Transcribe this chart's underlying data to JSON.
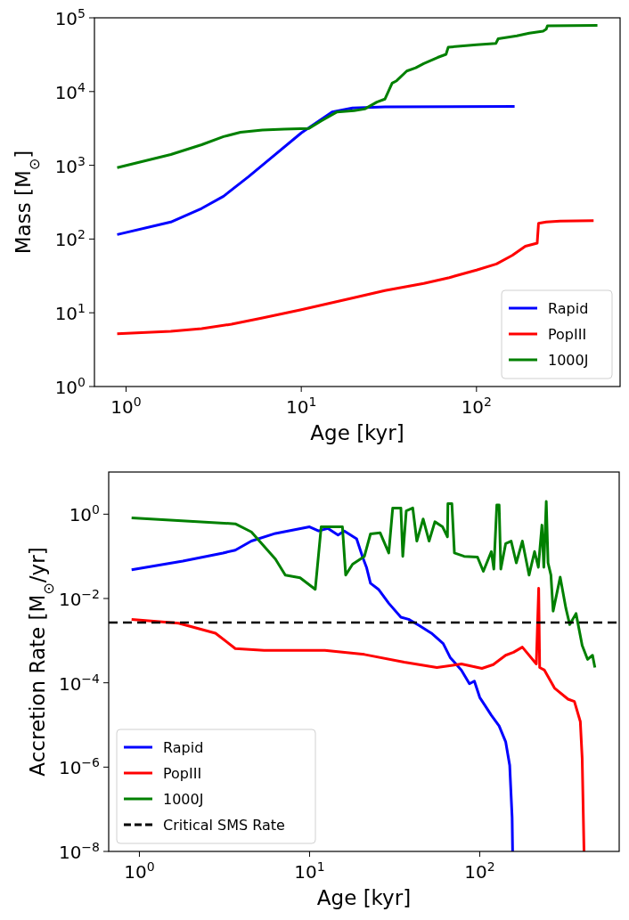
{
  "chart_data": [
    {
      "type": "line",
      "xlabel": "Age [kyr]",
      "ylabel": "Mass [M$_{⊙}$]",
      "log": "xy",
      "grid": false,
      "legend": "bottom right",
      "line_style": "solid",
      "marker": "none",
      "xlim": [
        0.66,
        660
      ],
      "ylim": [
        1,
        100000
      ],
      "xticks": [
        {
          "value": 1,
          "label": "10$^{0}$"
        },
        {
          "value": 10,
          "label": "10$^{1}$"
        },
        {
          "value": 100,
          "label": "10$^{2}$"
        }
      ],
      "yticks": [
        {
          "value": 1,
          "label": "10$^{0}$"
        },
        {
          "value": 10,
          "label": "10$^{1}$"
        },
        {
          "value": 100,
          "label": "10$^{2}$"
        },
        {
          "value": 1000,
          "label": "10$^{3}$"
        },
        {
          "value": 10000,
          "label": "10$^{4}$"
        },
        {
          "value": 100000,
          "label": "10$^{5}$"
        }
      ],
      "series": [
        {
          "name": "Rapid",
          "color": "#0000ff",
          "x": [
            0.89,
            1.8,
            2.7,
            3.6,
            5,
            6.4,
            10,
            15,
            19.6,
            30,
            165
          ],
          "values": [
            115,
            170,
            260,
            380,
            700,
            1140,
            2750,
            5300,
            6000,
            6200,
            6300
          ]
        },
        {
          "name": "PopIII",
          "color": "#ff0000",
          "x": [
            0.89,
            1.8,
            2.7,
            4,
            6,
            10,
            20,
            30,
            50,
            70,
            100,
            130,
            160,
            190,
            222,
            226,
            250,
            300,
            466
          ],
          "values": [
            5.2,
            5.6,
            6.1,
            7,
            8.5,
            11,
            16,
            20,
            25,
            30,
            38,
            46,
            60,
            80,
            88,
            163,
            170,
            175,
            178
          ]
        },
        {
          "name": "1000J",
          "color": "#008000",
          "x": [
            0.89,
            1.8,
            2.7,
            3.6,
            4.5,
            6,
            8,
            11,
            13,
            16,
            20,
            23,
            27,
            30,
            33,
            35,
            40,
            45,
            50,
            60,
            67,
            69,
            100,
            129,
            133,
            170,
            200,
            240,
            250,
            254,
            490
          ],
          "values": [
            930,
            1400,
            1900,
            2450,
            2800,
            3000,
            3100,
            3150,
            4000,
            5300,
            5500,
            5800,
            7200,
            7900,
            13000,
            14000,
            19000,
            21000,
            24000,
            29000,
            32000,
            40000,
            43000,
            45000,
            52000,
            57000,
            62000,
            66000,
            70000,
            78000,
            79000
          ]
        }
      ]
    },
    {
      "type": "line",
      "xlabel": "Age [kyr]",
      "ylabel": "Accretion Rate [M$_{⊙}$/yr]",
      "log": "xy",
      "grid": false,
      "legend": "bottom left",
      "line_style": "solid",
      "marker": "none",
      "xlim": [
        0.66,
        660
      ],
      "ylim": [
        1e-08,
        10
      ],
      "xticks": [
        {
          "value": 1,
          "label": "10$^{0}$"
        },
        {
          "value": 10,
          "label": "10$^{1}$"
        },
        {
          "value": 100,
          "label": "10$^{2}$"
        }
      ],
      "yticks": [
        {
          "value": 1e-08,
          "label": "10$^{−8}$"
        },
        {
          "value": 1e-06,
          "label": "10$^{−6}$"
        },
        {
          "value": 0.0001,
          "label": "10$^{−4}$"
        },
        {
          "value": 0.01,
          "label": "10$^{−2}$"
        },
        {
          "value": 1,
          "label": "10$^{0}$"
        }
      ],
      "ref_lines": [
        {
          "axis": "y",
          "value": 0.0027,
          "label": "Critical SMS Rate",
          "color": "#000000",
          "line_style": "dashed"
        }
      ],
      "series": [
        {
          "name": "Rapid",
          "color": "#0000ff",
          "x": [
            0.9,
            1.8,
            3.1,
            3.66,
            4.55,
            6.3,
            10,
            11.3,
            12.8,
            14.7,
            16,
            18.9,
            20.5,
            21.6,
            22.8,
            25.4,
            29.2,
            34.4,
            38.2,
            44,
            52,
            61,
            67,
            78,
            87,
            93,
            100,
            108,
            117,
            130,
            142,
            150,
            155,
            156
          ],
          "values": [
            0.048,
            0.077,
            0.12,
            0.14,
            0.23,
            0.35,
            0.5,
            0.4,
            0.46,
            0.32,
            0.4,
            0.26,
            0.096,
            0.055,
            0.023,
            0.0165,
            0.0077,
            0.0036,
            0.0032,
            0.0023,
            0.0015,
            0.00085,
            0.0004,
            0.0002,
            9.5e-05,
            0.00011,
            4.5e-05,
            2.8e-05,
            1.7e-05,
            9.5e-06,
            4e-06,
            1.1e-06,
            6.3e-08,
            1e-08
          ]
        },
        {
          "name": "PopIII",
          "color": "#ff0000",
          "x": [
            0.9,
            1.7,
            2.8,
            3.66,
            5.4,
            12.3,
            21,
            36,
            56,
            78,
            103,
            120,
            142,
            158,
            178,
            215,
            222,
            225,
            240,
            275,
            330,
            360,
            390,
            400,
            410
          ],
          "values": [
            0.0032,
            0.0026,
            0.0015,
            0.00065,
            0.00059,
            0.00059,
            0.00047,
            0.00031,
            0.00023,
            0.00028,
            0.00022,
            0.00027,
            0.00045,
            0.00053,
            0.0007,
            0.00028,
            0.0174,
            0.00023,
            0.0002,
            7.5e-05,
            4.1e-05,
            3.6e-05,
            1.2e-05,
            1.6e-06,
            1e-08
          ]
        },
        {
          "name": "1000J",
          "color": "#008000",
          "x": [
            0.9,
            3.66,
            4.55,
            6.3,
            7.2,
            8.8,
            10.8,
            11.7,
            15.6,
            16.3,
            17.9,
            21,
            22.8,
            26,
            29.2,
            30.8,
            34.4,
            35.3,
            37,
            40.4,
            42.7,
            46.5,
            50.4,
            54.5,
            60.5,
            64.6,
            65,
            68.6,
            71,
            81,
            97,
            105,
            117,
            121,
            126,
            130,
            133,
            142,
            153,
            164,
            178,
            195,
            210,
            221,
            232,
            238,
            246,
            252,
            262,
            270,
            297,
            321,
            338,
            368,
            400,
            430,
            460,
            475
          ],
          "values": [
            0.82,
            0.59,
            0.38,
            0.086,
            0.036,
            0.031,
            0.0165,
            0.5,
            0.5,
            0.036,
            0.065,
            0.1,
            0.34,
            0.36,
            0.12,
            1.4,
            1.4,
            0.1,
            1.2,
            1.4,
            0.23,
            0.77,
            0.23,
            0.66,
            0.5,
            0.29,
            1.77,
            1.77,
            0.12,
            0.1,
            0.096,
            0.044,
            0.13,
            0.05,
            1.66,
            1.66,
            0.05,
            0.2,
            0.23,
            0.07,
            0.23,
            0.036,
            0.13,
            0.055,
            0.55,
            0.055,
            2,
            0.07,
            0.036,
            0.005,
            0.032,
            0.0058,
            0.0024,
            0.0044,
            0.00077,
            0.00036,
            0.00045,
            0.00023
          ]
        }
      ]
    }
  ]
}
